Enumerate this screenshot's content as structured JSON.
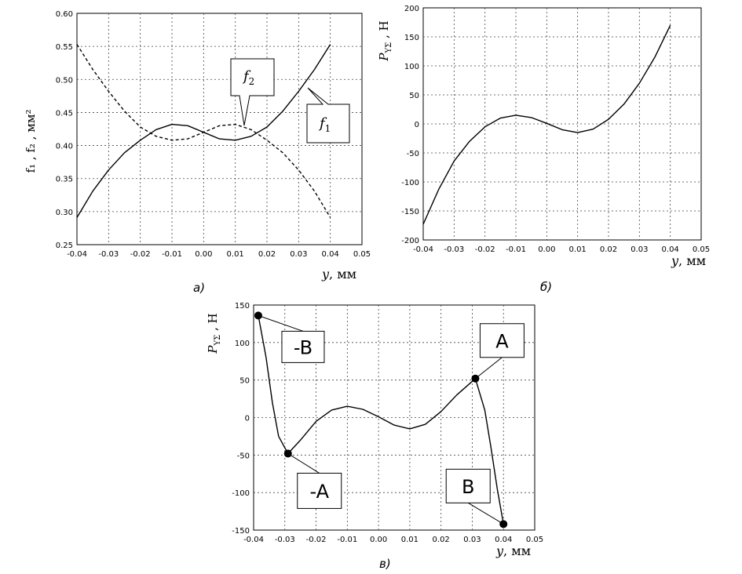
{
  "chart_data": [
    {
      "type": "line",
      "panel_label": "а)",
      "xlabel_var": "y",
      "xlabel_unit": ", мм",
      "ylabel": "f₁ , f₂ ,  мм²",
      "xlim": [
        -0.04,
        0.05
      ],
      "ylim": [
        0.25,
        0.6
      ],
      "grid": true,
      "x_ticks": [
        "-0.04",
        "-0.03",
        "-0.02",
        "-0.01",
        "0.00",
        "0.01",
        "0.02",
        "0.03",
        "0.04",
        "0.05"
      ],
      "y_ticks": [
        "0.25",
        "0.30",
        "0.35",
        "0.40",
        "0.45",
        "0.50",
        "0.55",
        "0.60"
      ],
      "series": [
        {
          "name": "f1",
          "style": "solid",
          "x": [
            -0.04,
            -0.035,
            -0.03,
            -0.025,
            -0.02,
            -0.015,
            -0.01,
            -0.005,
            0.0,
            0.005,
            0.01,
            0.015,
            0.02,
            0.025,
            0.03,
            0.035,
            0.04
          ],
          "y": [
            0.291,
            0.331,
            0.363,
            0.389,
            0.408,
            0.424,
            0.432,
            0.43,
            0.42,
            0.41,
            0.408,
            0.414,
            0.428,
            0.452,
            0.482,
            0.515,
            0.553
          ]
        },
        {
          "name": "f2",
          "style": "dashed",
          "x": [
            -0.04,
            -0.035,
            -0.03,
            -0.025,
            -0.02,
            -0.015,
            -0.01,
            -0.005,
            0.0,
            0.005,
            0.01,
            0.015,
            0.02,
            0.025,
            0.03,
            0.035,
            0.04
          ],
          "y": [
            0.553,
            0.515,
            0.482,
            0.452,
            0.428,
            0.414,
            0.408,
            0.41,
            0.42,
            0.43,
            0.432,
            0.424,
            0.408,
            0.389,
            0.363,
            0.331,
            0.291
          ]
        }
      ],
      "callouts": [
        {
          "main": "f",
          "sub": "2"
        },
        {
          "main": "f",
          "sub": "1"
        }
      ]
    },
    {
      "type": "line",
      "panel_label": "б)",
      "xlabel_var": "y",
      "xlabel_unit": ", мм",
      "ylabel": "P_YΣ , Н",
      "xlim": [
        -0.04,
        0.05
      ],
      "ylim": [
        -200,
        200
      ],
      "grid": true,
      "x_ticks": [
        "-0.04",
        "-0.03",
        "-0.02",
        "-0.01",
        "0.00",
        "0.01",
        "0.02",
        "0.03",
        "0.04",
        "0.05"
      ],
      "y_ticks": [
        "-200",
        "-150",
        "-100",
        "-50",
        "0",
        "50",
        "100",
        "150",
        "200"
      ],
      "series": [
        {
          "name": "",
          "style": "solid",
          "x": [
            -0.04,
            -0.035,
            -0.03,
            -0.025,
            -0.02,
            -0.015,
            -0.01,
            -0.005,
            0.0,
            0.005,
            0.01,
            0.015,
            0.02,
            0.025,
            0.03,
            0.035,
            0.04
          ],
          "y": [
            -173,
            -113,
            -64,
            -30,
            -5,
            10,
            15,
            11,
            1,
            -10,
            -15,
            -9,
            8,
            34,
            70,
            115,
            170
          ]
        }
      ]
    },
    {
      "type": "line",
      "panel_label": "в)",
      "xlabel_var": "y",
      "xlabel_unit": ", мм",
      "ylabel": "P_YΣ , Н",
      "xlim": [
        -0.04,
        0.05
      ],
      "ylim": [
        -150,
        150
      ],
      "grid": true,
      "x_ticks": [
        "-0.04",
        "-0.03",
        "-0.02",
        "-0.01",
        "0.00",
        "0.01",
        "0.02",
        "0.03",
        "0.04",
        "0.05"
      ],
      "y_ticks": [
        "-150",
        "-100",
        "-50",
        "0",
        "50",
        "100",
        "150"
      ],
      "series": [
        {
          "name": "",
          "style": "solid",
          "x": [
            -0.029,
            -0.025,
            -0.02,
            -0.015,
            -0.01,
            -0.005,
            0.0,
            0.005,
            0.01,
            0.015,
            0.02,
            0.025,
            0.031
          ],
          "y": [
            -48,
            -30,
            -5,
            10,
            15,
            11,
            1,
            -10,
            -15,
            -9,
            8,
            30,
            52
          ]
        },
        {
          "name": "",
          "style": "solid",
          "x": [
            0.031,
            0.034,
            0.036,
            0.038,
            0.04
          ],
          "y": [
            52,
            10,
            -40,
            -95,
            -142
          ]
        },
        {
          "name": "",
          "style": "solid",
          "x": [
            -0.0385,
            -0.036,
            -0.034,
            -0.032,
            -0.029
          ],
          "y": [
            136,
            80,
            20,
            -25,
            -48
          ]
        }
      ],
      "points": [
        {
          "label": "-B",
          "x": -0.0385,
          "y": 136
        },
        {
          "label": "-A",
          "x": -0.029,
          "y": -48
        },
        {
          "label": "A",
          "x": 0.031,
          "y": 52
        },
        {
          "label": "B",
          "x": 0.04,
          "y": -142
        }
      ]
    }
  ]
}
